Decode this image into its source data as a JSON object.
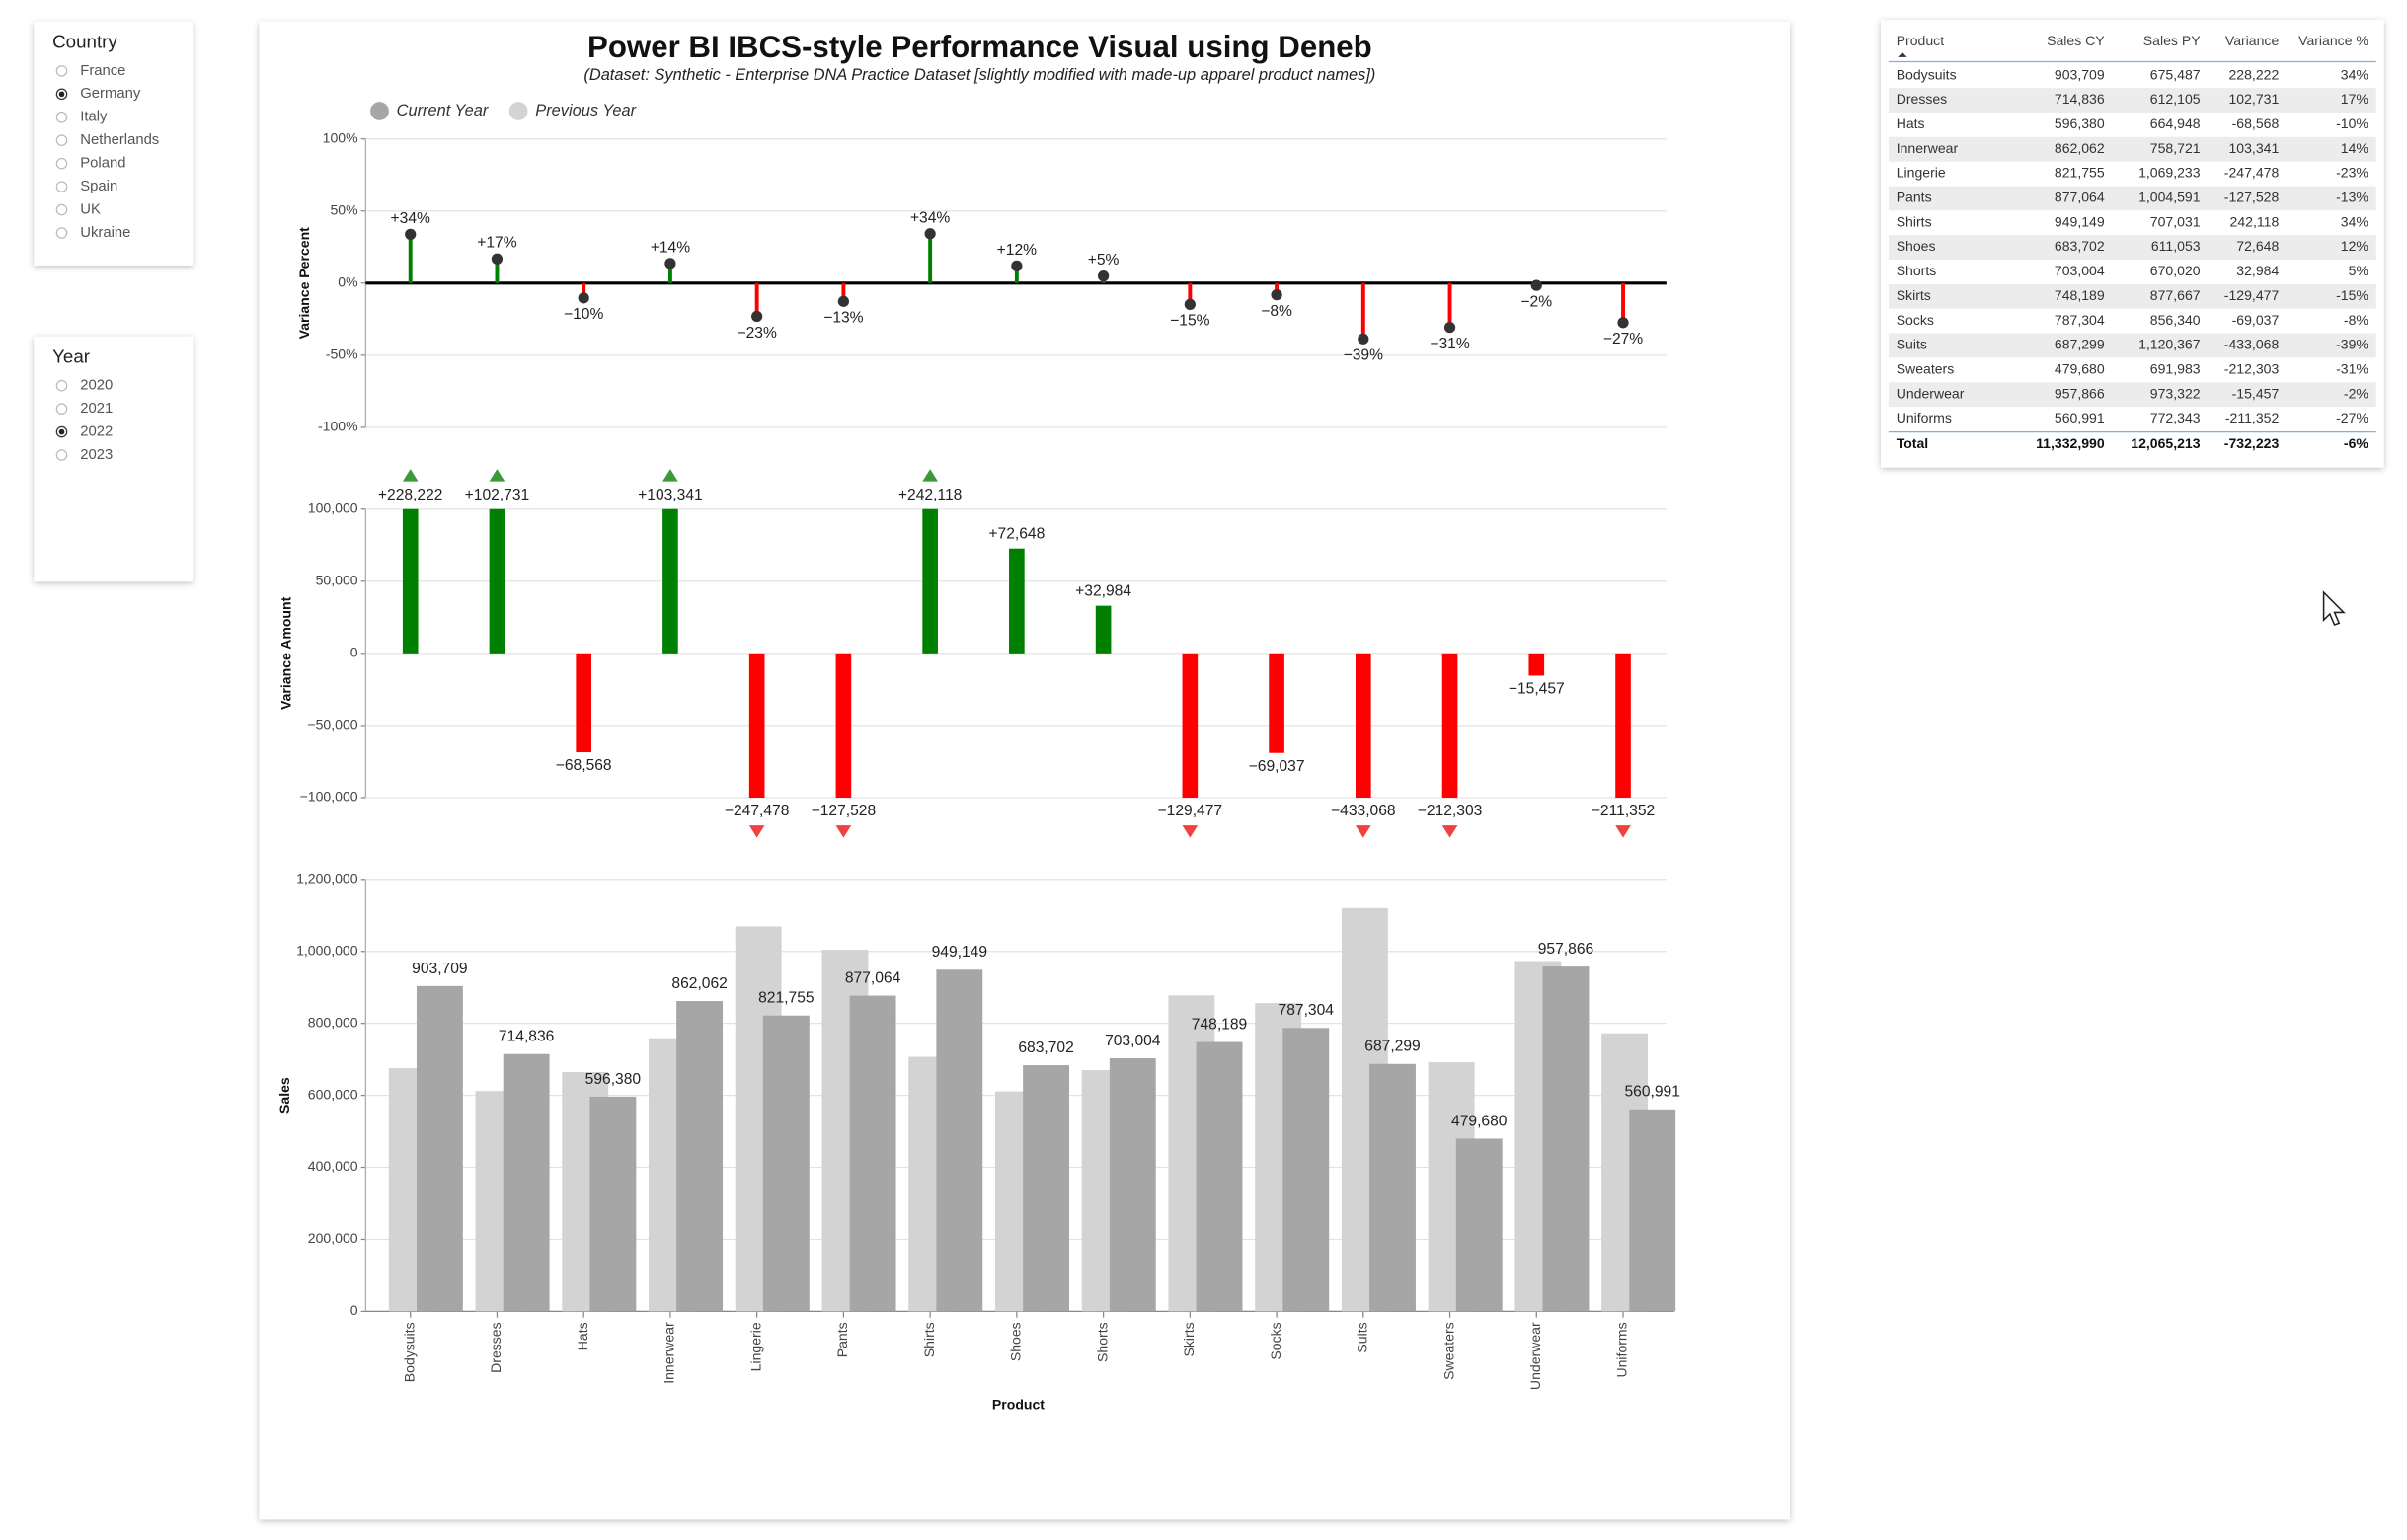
{
  "slicers": [
    {
      "title": "Country",
      "options": [
        "France",
        "Germany",
        "Italy",
        "Netherlands",
        "Poland",
        "Spain",
        "UK",
        "Ukraine"
      ],
      "selected": 1
    },
    {
      "title": "Year",
      "options": [
        "2020",
        "2021",
        "2022",
        "2023"
      ],
      "selected": 2
    }
  ],
  "visual": {
    "title": "Power BI IBCS-style Performance Visual using Deneb",
    "subtitle": "(Dataset: Synthetic - Enterprise DNA Practice Dataset [slightly modified with made-up apparel product names])"
  },
  "chart_data": [
    {
      "type": "lollipop",
      "y_label": "Variance Percent",
      "values": [
        33.8,
        16.8,
        -10.3,
        13.6,
        -23.1,
        -12.7,
        34.2,
        11.9,
        4.9,
        -14.8,
        -8.1,
        -38.7,
        -30.7,
        -1.6,
        -27.4
      ],
      "value_labels": [
        "+34%",
        "+17%",
        "−10%",
        "+14%",
        "−23%",
        "−13%",
        "+34%",
        "+12%",
        "+5%",
        "−15%",
        "−8%",
        "−39%",
        "−31%",
        "−2%",
        "−27%"
      ],
      "positive_color": "#008000",
      "negative_color": "#ff0000",
      "ylim": [
        -100,
        100
      ],
      "yticks": [
        {
          "value": -100,
          "label": "-100%"
        },
        {
          "value": -50,
          "label": "-50%"
        },
        {
          "value": 0,
          "label": "0%"
        },
        {
          "value": 50,
          "label": "50%"
        },
        {
          "value": 100,
          "label": "100%"
        }
      ],
      "grid": true
    },
    {
      "type": "variance_bar",
      "y_label": "Variance Amount",
      "values": [
        228222,
        102731,
        -68568,
        103341,
        -247478,
        -127528,
        242118,
        72648,
        32984,
        -129477,
        -69037,
        -433068,
        -212303,
        -15457,
        -211352
      ],
      "value_labels": [
        "+228,222",
        "+102,731",
        "−68,568",
        "+103,341",
        "−247,478",
        "−127,528",
        "+242,118",
        "+72,648",
        "+32,984",
        "−129,477",
        "−69,037",
        "−433,068",
        "−212,303",
        "−15,457",
        "−211,352"
      ],
      "positive_color": "#008000",
      "negative_color": "#ff0000",
      "ylim": [
        -100000,
        100000
      ],
      "yticks": [
        {
          "value": -100000,
          "label": "−100,000"
        },
        {
          "value": -50000,
          "label": "−50,000"
        },
        0,
        {
          "value": 50000,
          "label": "50,000"
        },
        {
          "value": 100000,
          "label": "100,000"
        }
      ],
      "grid": true
    },
    {
      "type": "bar",
      "x_label": "Product",
      "y_label": "Sales",
      "categories": [
        "Bodysuits",
        "Dresses",
        "Hats",
        "Innerwear",
        "Lingerie",
        "Pants",
        "Shirts",
        "Shoes",
        "Shorts",
        "Skirts",
        "Socks",
        "Suits",
        "Sweaters",
        "Underwear",
        "Uniforms"
      ],
      "series": [
        {
          "name": "Previous Year",
          "color": "#d3d3d3",
          "values": [
            675487,
            612105,
            664948,
            758721,
            1069233,
            1004591,
            707031,
            611053,
            670020,
            877667,
            856340,
            1120367,
            691983,
            973322,
            772343
          ]
        },
        {
          "name": "Current Year",
          "color": "#a6a6a6",
          "values": [
            903709,
            714836,
            596380,
            862062,
            821755,
            877064,
            949149,
            683702,
            703004,
            748189,
            787304,
            687299,
            479680,
            957866,
            560991
          ],
          "value_labels": [
            "903,709",
            "714,836",
            "596,380",
            "862,062",
            "821,755",
            "877,064",
            "949,149",
            "683,702",
            "703,004",
            "748,189",
            "787,304",
            "687,299",
            "479,680",
            "957,866",
            "560,991"
          ]
        }
      ],
      "ylim": [
        0,
        1200000
      ],
      "yticks": [
        0,
        {
          "value": 200000,
          "label": "200,000"
        },
        {
          "value": 400000,
          "label": "400,000"
        },
        {
          "value": 600000,
          "label": "600,000"
        },
        {
          "value": 800000,
          "label": "800,000"
        },
        {
          "value": 1000000,
          "label": "1,000,000"
        },
        {
          "value": 1200000,
          "label": "1,200,000"
        }
      ],
      "grid": true,
      "legend": "top-left"
    }
  ],
  "table": {
    "header": [
      "Product",
      "Sales CY",
      "Sales PY",
      "Variance",
      "Variance %"
    ],
    "rows": [
      [
        "Bodysuits",
        "903,709",
        "675,487",
        "228,222",
        "34%"
      ],
      [
        "Dresses",
        "714,836",
        "612,105",
        "102,731",
        "17%"
      ],
      [
        "Hats",
        "596,380",
        "664,948",
        "-68,568",
        "-10%"
      ],
      [
        "Innerwear",
        "862,062",
        "758,721",
        "103,341",
        "14%"
      ],
      [
        "Lingerie",
        "821,755",
        "1,069,233",
        "-247,478",
        "-23%"
      ],
      [
        "Pants",
        "877,064",
        "1,004,591",
        "-127,528",
        "-13%"
      ],
      [
        "Shirts",
        "949,149",
        "707,031",
        "242,118",
        "34%"
      ],
      [
        "Shoes",
        "683,702",
        "611,053",
        "72,648",
        "12%"
      ],
      [
        "Shorts",
        "703,004",
        "670,020",
        "32,984",
        "5%"
      ],
      [
        "Skirts",
        "748,189",
        "877,667",
        "-129,477",
        "-15%"
      ],
      [
        "Socks",
        "787,304",
        "856,340",
        "-69,037",
        "-8%"
      ],
      [
        "Suits",
        "687,299",
        "1,120,367",
        "-433,068",
        "-39%"
      ],
      [
        "Sweaters",
        "479,680",
        "691,983",
        "-212,303",
        "-31%"
      ],
      [
        "Underwear",
        "957,866",
        "973,322",
        "-15,457",
        "-2%"
      ],
      [
        "Uniforms",
        "560,991",
        "772,343",
        "-211,352",
        "-27%"
      ]
    ],
    "total": [
      "Total",
      "11,332,990",
      "12,065,213",
      "-732,223",
      "-6%"
    ]
  }
}
